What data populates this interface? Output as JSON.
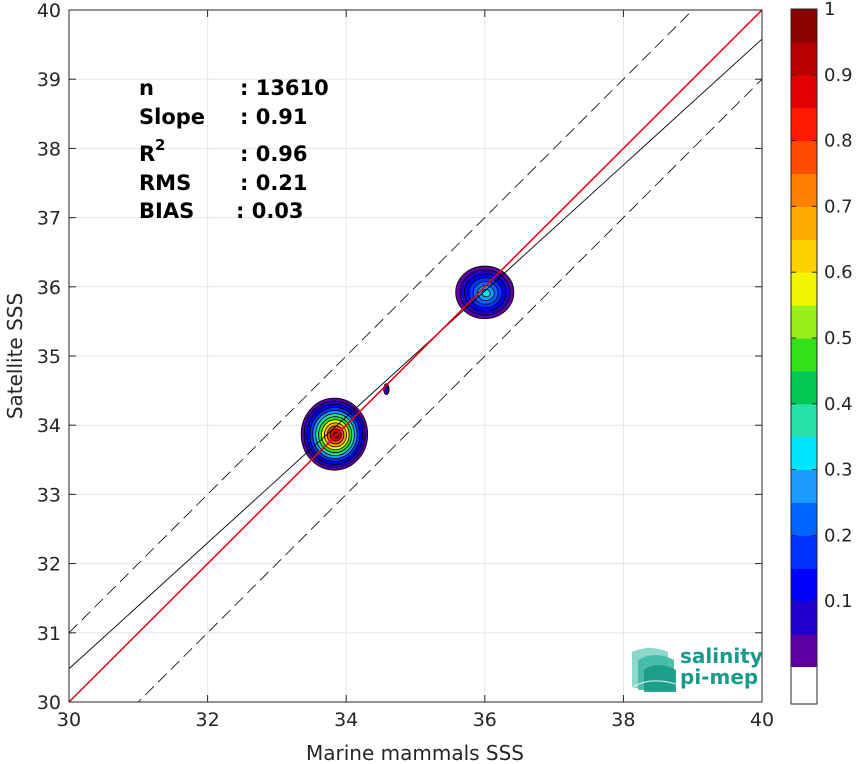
{
  "chart_data": {
    "type": "scatter-density",
    "xlabel": "Marine mammals SSS",
    "ylabel": "Satellite SSS",
    "xlim": [
      30,
      40
    ],
    "ylim": [
      30,
      40
    ],
    "xticks": [
      30,
      32,
      34,
      36,
      38,
      40
    ],
    "yticks": [
      30,
      31,
      32,
      33,
      34,
      35,
      36,
      37,
      38,
      39,
      40
    ],
    "grid": true,
    "stats": {
      "n_label": "n",
      "n_value": ": 13610",
      "slope_label": "Slope",
      "slope_value": ": 0.91",
      "r2_label": "R",
      "r2_sup": "2",
      "r2_value": ": 0.96",
      "rms_label": "RMS",
      "rms_value": ": 0.21",
      "bias_label": "BIAS",
      "bias_value": ": 0.03"
    },
    "lines": {
      "identity": {
        "color": "#e8000b",
        "slope": 1,
        "intercept": 0
      },
      "regression": {
        "color": "#000000",
        "slope": 0.91,
        "intercept": 3.18
      },
      "envelope_offset": 1.0
    },
    "density_clusters": [
      {
        "center": [
          33.83,
          33.87
        ],
        "radius_x": 0.48,
        "radius_y": 0.52,
        "levels": [
          0.05,
          0.1,
          0.15,
          0.2,
          0.3,
          0.4,
          0.5,
          0.6,
          0.7,
          0.8,
          0.9,
          1.0
        ]
      },
      {
        "center": [
          36.0,
          35.92
        ],
        "radius_x": 0.42,
        "radius_y": 0.38,
        "levels": [
          0.05,
          0.1,
          0.15,
          0.2,
          0.25,
          0.3,
          0.35
        ]
      },
      {
        "center": [
          34.58,
          34.52
        ],
        "radius_x": 0.04,
        "radius_y": 0.08,
        "levels": [
          0.05,
          0.15
        ]
      }
    ],
    "colorbar": {
      "ticks": [
        "0.1",
        "0.2",
        "0.3",
        "0.4",
        "0.5",
        "0.6",
        "0.7",
        "0.8",
        "0.9",
        "1"
      ],
      "colors": [
        "#5c00a3",
        "#2200cc",
        "#0000ff",
        "#0033ff",
        "#0066ff",
        "#1a99ff",
        "#00e5ff",
        "#26e0a8",
        "#00c850",
        "#33e019",
        "#99f019",
        "#f2f500",
        "#ffd000",
        "#ffaa00",
        "#ff7f00",
        "#ff4c00",
        "#ff1a00",
        "#e00000",
        "#b80000",
        "#8b0000"
      ]
    }
  },
  "logo": {
    "line1": "salinity",
    "line2": "pi-mep"
  }
}
